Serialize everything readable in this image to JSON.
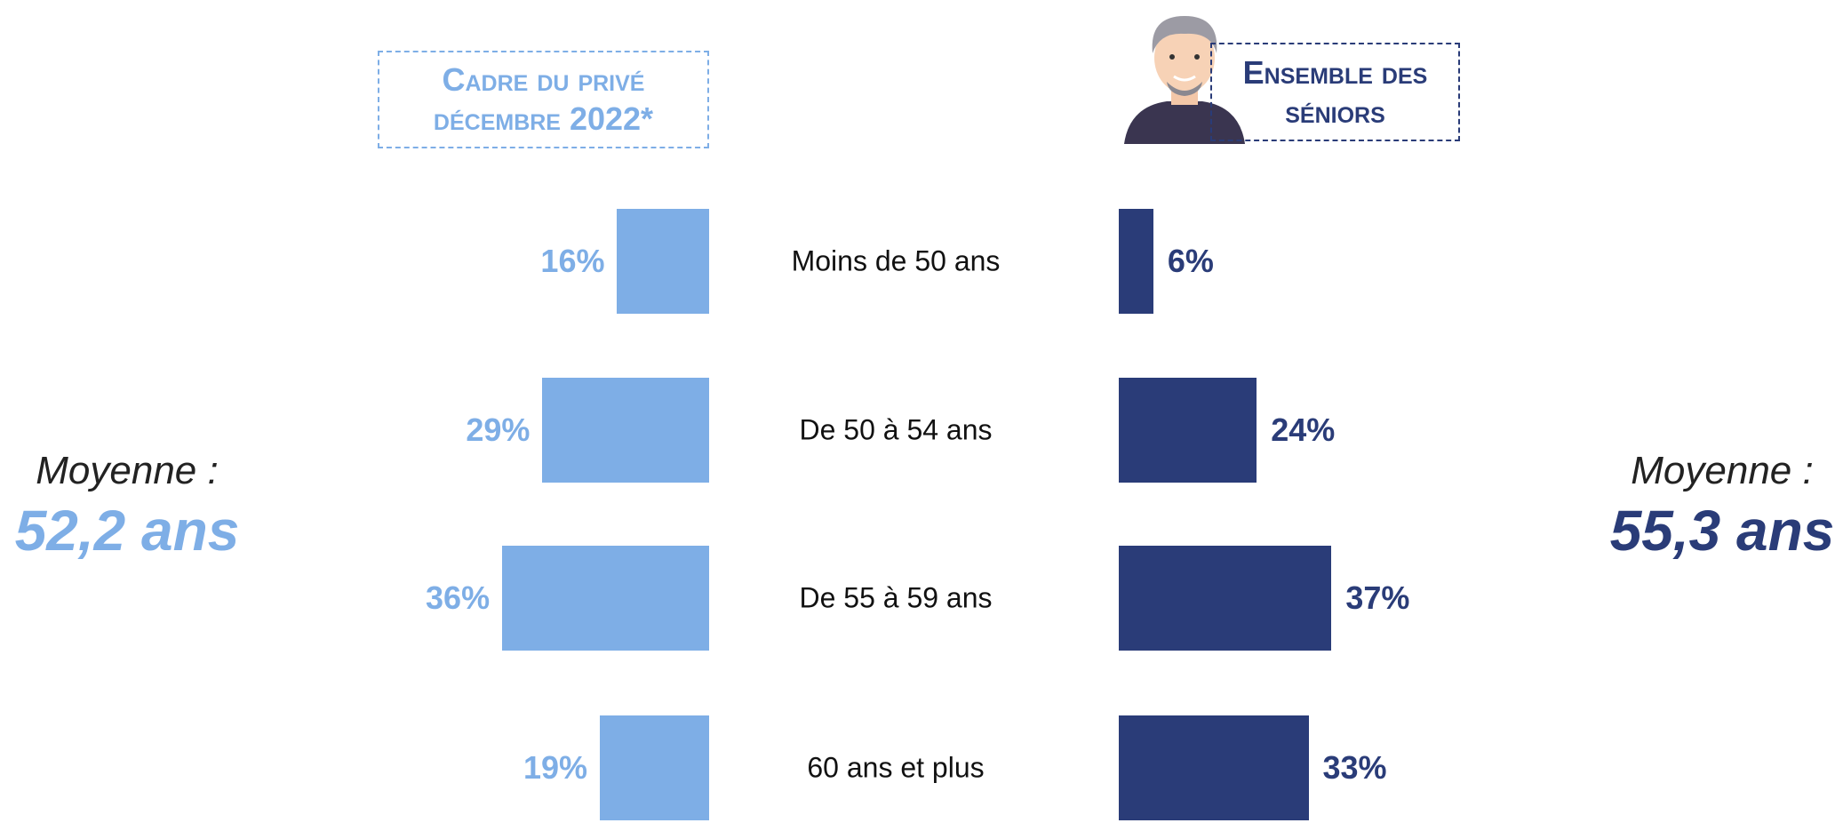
{
  "chart_data": {
    "type": "butterfly-bar",
    "categories": [
      "Moins de 50 ans",
      "De 50 à 54 ans",
      "De 55 à 59 ans",
      "60 ans et plus"
    ],
    "series": [
      {
        "name": "Cadre du privé décembre 2022*",
        "color": "#7eaee6",
        "values": [
          16,
          29,
          36,
          19
        ],
        "value_labels": [
          "16%",
          "29%",
          "36%",
          "19%"
        ]
      },
      {
        "name": "Ensemble des séniors",
        "color": "#2a3c78",
        "values": [
          6,
          24,
          37,
          33
        ],
        "value_labels": [
          "6%",
          "24%",
          "37%",
          "33%"
        ]
      }
    ],
    "annotations": [
      {
        "label": "Moyenne :",
        "value": "52,2 ans"
      },
      {
        "label": "Moyenne :",
        "value": "55,3 ans"
      }
    ]
  }
}
